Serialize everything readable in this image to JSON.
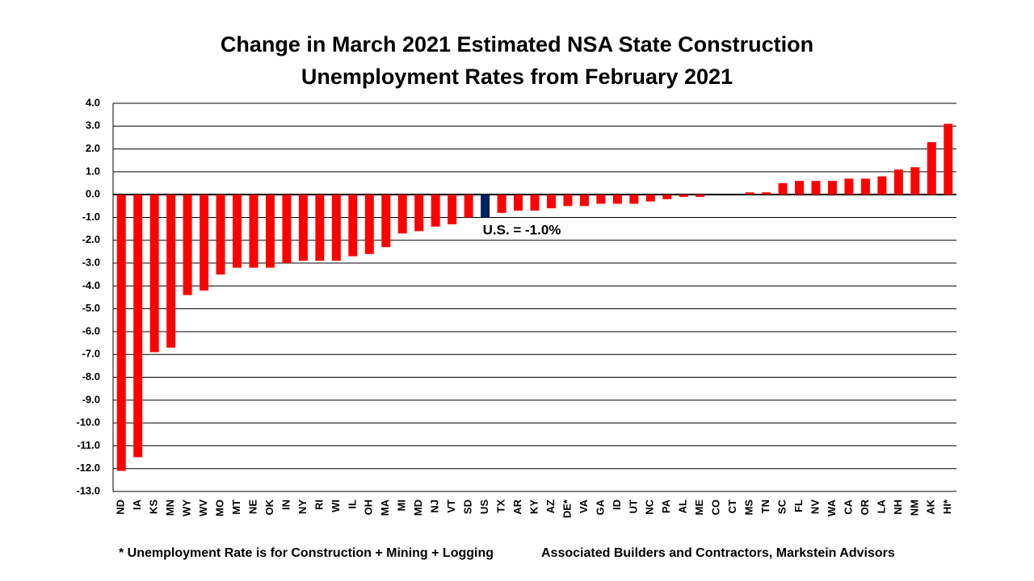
{
  "chart_data": {
    "type": "bar",
    "title": [
      "Change in March 2021 Estimated NSA State Construction",
      "Unemployment Rates from February 2021"
    ],
    "categories": [
      "ND",
      "IA",
      "KS",
      "MN",
      "WY",
      "WV",
      "MO",
      "MT",
      "NE",
      "OK",
      "IN",
      "NY",
      "RI",
      "WI",
      "IL",
      "OH",
      "MA",
      "MI",
      "MD",
      "NJ",
      "VT",
      "SD",
      "US",
      "TX",
      "AR",
      "KY",
      "AZ",
      "DE*",
      "VA",
      "GA",
      "ID",
      "UT",
      "NC",
      "PA",
      "AL",
      "ME",
      "CO",
      "CT",
      "MS",
      "TN",
      "SC",
      "FL",
      "NV",
      "WA",
      "CA",
      "OR",
      "LA",
      "NH",
      "NM",
      "AK",
      "HI*"
    ],
    "values": [
      -12.1,
      -11.5,
      -6.9,
      -6.7,
      -4.4,
      -4.2,
      -3.5,
      -3.2,
      -3.2,
      -3.2,
      -3.0,
      -2.9,
      -2.9,
      -2.9,
      -2.7,
      -2.6,
      -2.3,
      -1.7,
      -1.6,
      -1.4,
      -1.3,
      -1.0,
      -1.0,
      -0.8,
      -0.7,
      -0.7,
      -0.6,
      -0.5,
      -0.5,
      -0.4,
      -0.4,
      -0.4,
      -0.3,
      -0.2,
      -0.1,
      -0.1,
      0.0,
      0.0,
      0.1,
      0.1,
      0.5,
      0.6,
      0.6,
      0.6,
      0.7,
      0.7,
      0.8,
      1.1,
      1.2,
      2.3,
      3.1
    ],
    "colors": [
      "#ff0000",
      "#ff0000",
      "#ff0000",
      "#ff0000",
      "#ff0000",
      "#ff0000",
      "#ff0000",
      "#ff0000",
      "#ff0000",
      "#ff0000",
      "#ff0000",
      "#ff0000",
      "#ff0000",
      "#ff0000",
      "#ff0000",
      "#ff0000",
      "#ff0000",
      "#ff0000",
      "#ff0000",
      "#ff0000",
      "#ff0000",
      "#ff0000",
      "#002060",
      "#ff0000",
      "#ff0000",
      "#ff0000",
      "#ff0000",
      "#ff0000",
      "#ff0000",
      "#ff0000",
      "#ff0000",
      "#ff0000",
      "#ff0000",
      "#ff0000",
      "#ff0000",
      "#ff0000",
      "#ff0000",
      "#ff0000",
      "#ff0000",
      "#ff0000",
      "#ff0000",
      "#ff0000",
      "#ff0000",
      "#ff0000",
      "#ff0000",
      "#ff0000",
      "#ff0000",
      "#ff0000",
      "#ff0000",
      "#ff0000",
      "#ff0000"
    ],
    "ylim": [
      -13,
      4
    ],
    "yticks": [
      {
        "value": 4,
        "label": "4.0"
      },
      {
        "value": 3,
        "label": "3.0"
      },
      {
        "value": 2,
        "label": "2.0"
      },
      {
        "value": 1,
        "label": "1.0"
      },
      {
        "value": 0,
        "label": "0.0"
      },
      {
        "value": -1,
        "label": "-1.0"
      },
      {
        "value": -2,
        "label": "-2.0"
      },
      {
        "value": -3,
        "label": "-3.0"
      },
      {
        "value": -4,
        "label": "-4.0"
      },
      {
        "value": -5,
        "label": "-5.0"
      },
      {
        "value": -6,
        "label": "-6.0"
      },
      {
        "value": -7,
        "label": "-7.0"
      },
      {
        "value": -8,
        "label": "-8.0"
      },
      {
        "value": -9,
        "label": "-9.0"
      },
      {
        "value": -10,
        "label": "-10.0"
      },
      {
        "value": -11,
        "label": "-11.0"
      },
      {
        "value": -12,
        "label": "-12.0"
      },
      {
        "value": -13,
        "label": "-13.0"
      }
    ],
    "grid": true,
    "annotation": "U.S. = -1.0%",
    "footnote": "* Unemployment Rate is for Construction + Mining + Logging",
    "source": "Associated Builders and Contractors, Markstein Advisors"
  }
}
